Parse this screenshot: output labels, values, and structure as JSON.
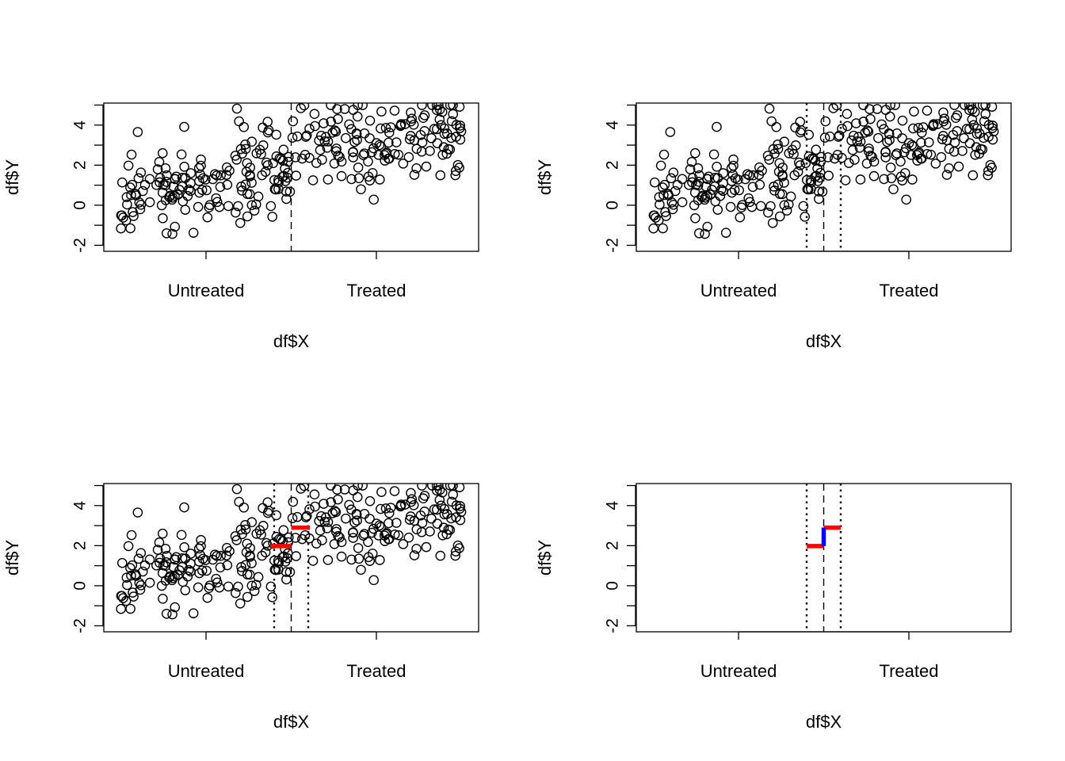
{
  "chart_data": [
    {
      "type": "scatter",
      "xlabel": "df$X",
      "ylabel": "df$Y",
      "xtick_labels": [
        "Untreated",
        "Treated"
      ],
      "yticks": [
        -2,
        0,
        2,
        4
      ],
      "xlim": [
        -1.1,
        1.1
      ],
      "ylim": [
        -2.3,
        5.1
      ],
      "cutoff": 0,
      "bandwidth_lines": [],
      "series": [
        {
          "points_ref": "shared_points"
        }
      ],
      "segments": []
    },
    {
      "type": "scatter",
      "xlabel": "df$X",
      "ylabel": "df$Y",
      "xtick_labels": [
        "Untreated",
        "Treated"
      ],
      "yticks": [
        -2,
        0,
        2,
        4
      ],
      "xlim": [
        -1.1,
        1.1
      ],
      "ylim": [
        -2.3,
        5.1
      ],
      "cutoff": 0,
      "bandwidth_lines": [
        -0.1,
        0.1
      ],
      "series": [
        {
          "points_ref": "shared_points"
        }
      ],
      "segments": []
    },
    {
      "type": "scatter",
      "xlabel": "df$X",
      "ylabel": "df$Y",
      "xtick_labels": [
        "Untreated",
        "Treated"
      ],
      "yticks": [
        -2,
        0,
        2,
        4
      ],
      "xlim": [
        -1.1,
        1.1
      ],
      "ylim": [
        -2.3,
        5.1
      ],
      "cutoff": 0,
      "bandwidth_lines": [
        -0.1,
        0.1
      ],
      "series": [
        {
          "points_ref": "shared_points"
        }
      ],
      "segments": [
        {
          "x": [
            -0.12,
            0.0
          ],
          "y": [
            1.98,
            1.98
          ],
          "color": "#ff0000"
        },
        {
          "x": [
            0.0,
            0.11
          ],
          "y": [
            2.9,
            2.9
          ],
          "color": "#ff0000"
        }
      ]
    },
    {
      "type": "line",
      "xlabel": "df$X",
      "ylabel": "df$Y",
      "xtick_labels": [
        "Untreated",
        "Treated"
      ],
      "yticks": [
        -2,
        0,
        2,
        4
      ],
      "xlim": [
        -1.1,
        1.1
      ],
      "ylim": [
        -2.3,
        5.1
      ],
      "cutoff": 0,
      "bandwidth_lines": [
        -0.1,
        0.1
      ],
      "series": [],
      "segments": [
        {
          "x": [
            -0.1,
            0.0
          ],
          "y": [
            1.98,
            1.98
          ],
          "color": "#ff0000"
        },
        {
          "x": [
            0.0,
            0.1
          ],
          "y": [
            2.9,
            2.9
          ],
          "color": "#ff0000"
        },
        {
          "x": [
            0.0,
            0.0
          ],
          "y": [
            1.98,
            2.9
          ],
          "color": "#0000ff"
        }
      ]
    }
  ],
  "shared_points": {
    "note_seed": 7,
    "count": 320
  },
  "colors": {
    "point_stroke": "#000000",
    "fit_line": "#ff0000",
    "jump_line": "#0000ff"
  }
}
